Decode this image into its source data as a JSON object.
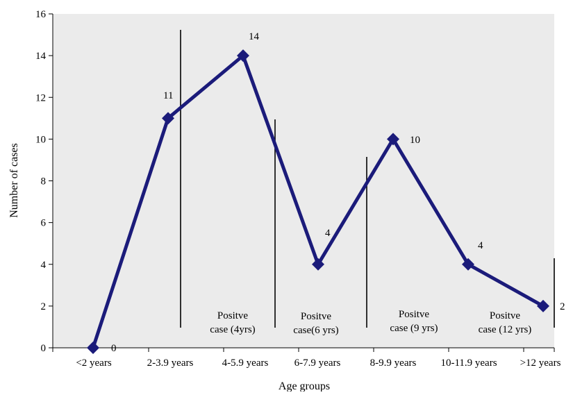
{
  "chart_data": {
    "type": "line",
    "xlabel": "Age groups",
    "ylabel": "Number of cases",
    "ylim": [
      0,
      16
    ],
    "yticks": [
      0,
      2,
      4,
      6,
      8,
      10,
      12,
      14,
      16
    ],
    "grid": false,
    "categories": [
      "<2 years",
      "2-3.9 years",
      "4-5.9 years",
      "6-7.9 years",
      "8-9.9 years",
      "10-11.9 years",
      ">12 years"
    ],
    "series": [
      {
        "values": [
          0,
          11,
          14,
          4,
          10,
          4,
          2
        ],
        "color": "#1b1b7a"
      }
    ],
    "data_labels": [
      "0",
      "11",
      "14",
      "4",
      "10",
      "4",
      "2"
    ],
    "annotations": [
      {
        "lines": [
          "Positve",
          "case (4yrs)"
        ]
      },
      {
        "lines": [
          "Positve",
          "case(6 yrs)"
        ]
      },
      {
        "lines": [
          "Positve",
          "case (9 yrs)"
        ]
      },
      {
        "lines": [
          "Positve",
          "case (12 yrs)"
        ]
      }
    ],
    "colors": {
      "plot_background": "#ebebeb",
      "line": "#1b1b7a",
      "marker": "#1b1b7a",
      "axis": "#000000"
    }
  }
}
